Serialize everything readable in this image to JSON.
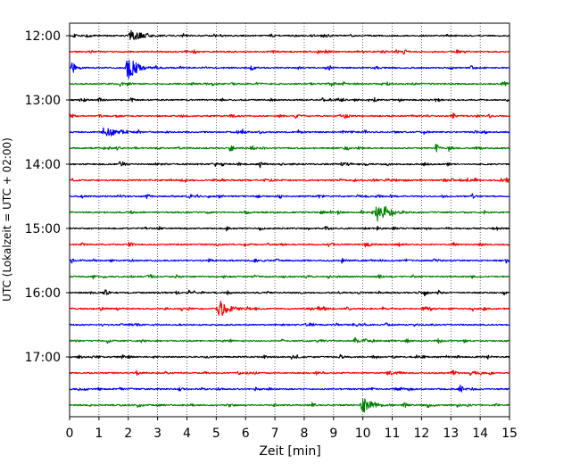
{
  "chart_data": {
    "type": "line",
    "title": "",
    "xlabel": "Zeit  [min]",
    "ylabel": "UTC (Lokalzeit = UTC + 02:00)",
    "xlim": [
      0,
      15
    ],
    "xticks": [
      "0",
      "1",
      "2",
      "3",
      "4",
      "5",
      "6",
      "7",
      "8",
      "9",
      "10",
      "11",
      "12",
      "13",
      "14",
      "15"
    ],
    "yticks": [
      "12:00",
      "13:00",
      "14:00",
      "15:00",
      "16:00",
      "17:00"
    ],
    "trace_interval_min": 15,
    "grid": "vertical-dotted",
    "trace_colors": [
      "#000000",
      "#ff0000",
      "#0000ff",
      "#008000"
    ],
    "series": [
      {
        "start": "12:00",
        "color": "#000000",
        "events": [
          {
            "x": 2.1,
            "amp": 0.45
          }
        ]
      },
      {
        "start": "12:15",
        "color": "#ff0000",
        "events": [
          {
            "x": 11.4,
            "amp": 0.25
          }
        ]
      },
      {
        "start": "12:30",
        "color": "#0000ff",
        "events": [
          {
            "x": 2.0,
            "amp": 1.0
          },
          {
            "x": 0.1,
            "amp": 0.4
          }
        ]
      },
      {
        "start": "12:45",
        "color": "#008000",
        "events": []
      },
      {
        "start": "13:00",
        "color": "#000000",
        "events": []
      },
      {
        "start": "13:15",
        "color": "#ff0000",
        "events": []
      },
      {
        "start": "13:30",
        "color": "#0000ff",
        "events": [
          {
            "x": 1.2,
            "amp": 0.5
          }
        ]
      },
      {
        "start": "13:45",
        "color": "#008000",
        "events": [
          {
            "x": 12.5,
            "amp": 0.25
          }
        ]
      },
      {
        "start": "14:00",
        "color": "#000000",
        "events": [
          {
            "x": 6.5,
            "amp": 0.2
          }
        ]
      },
      {
        "start": "14:15",
        "color": "#ff0000",
        "events": [
          {
            "x": 14.9,
            "amp": 0.2
          }
        ]
      },
      {
        "start": "14:30",
        "color": "#0000ff",
        "events": [
          {
            "x": 6.4,
            "amp": 0.2
          }
        ]
      },
      {
        "start": "14:45",
        "color": "#008000",
        "events": [
          {
            "x": 10.5,
            "amp": 0.7
          },
          {
            "x": 6.0,
            "amp": 0.25
          }
        ]
      },
      {
        "start": "15:00",
        "color": "#000000",
        "events": [
          {
            "x": 10.5,
            "amp": 0.2
          }
        ]
      },
      {
        "start": "15:15",
        "color": "#ff0000",
        "events": []
      },
      {
        "start": "15:30",
        "color": "#0000ff",
        "events": [
          {
            "x": 9.3,
            "amp": 0.3
          },
          {
            "x": 14.9,
            "amp": 0.3
          }
        ]
      },
      {
        "start": "15:45",
        "color": "#008000",
        "events": []
      },
      {
        "start": "16:00",
        "color": "#000000",
        "events": [
          {
            "x": 12.1,
            "amp": 0.25
          }
        ]
      },
      {
        "start": "16:15",
        "color": "#ff0000",
        "events": [
          {
            "x": 5.1,
            "amp": 0.75
          }
        ]
      },
      {
        "start": "16:30",
        "color": "#0000ff",
        "events": []
      },
      {
        "start": "16:45",
        "color": "#008000",
        "events": [
          {
            "x": 11.5,
            "amp": 0.2
          }
        ]
      },
      {
        "start": "17:00",
        "color": "#000000",
        "events": []
      },
      {
        "start": "17:15",
        "color": "#ff0000",
        "events": []
      },
      {
        "start": "17:30",
        "color": "#0000ff",
        "events": []
      },
      {
        "start": "17:45",
        "color": "#008000",
        "events": [
          {
            "x": 10.0,
            "amp": 0.7
          }
        ]
      }
    ]
  }
}
